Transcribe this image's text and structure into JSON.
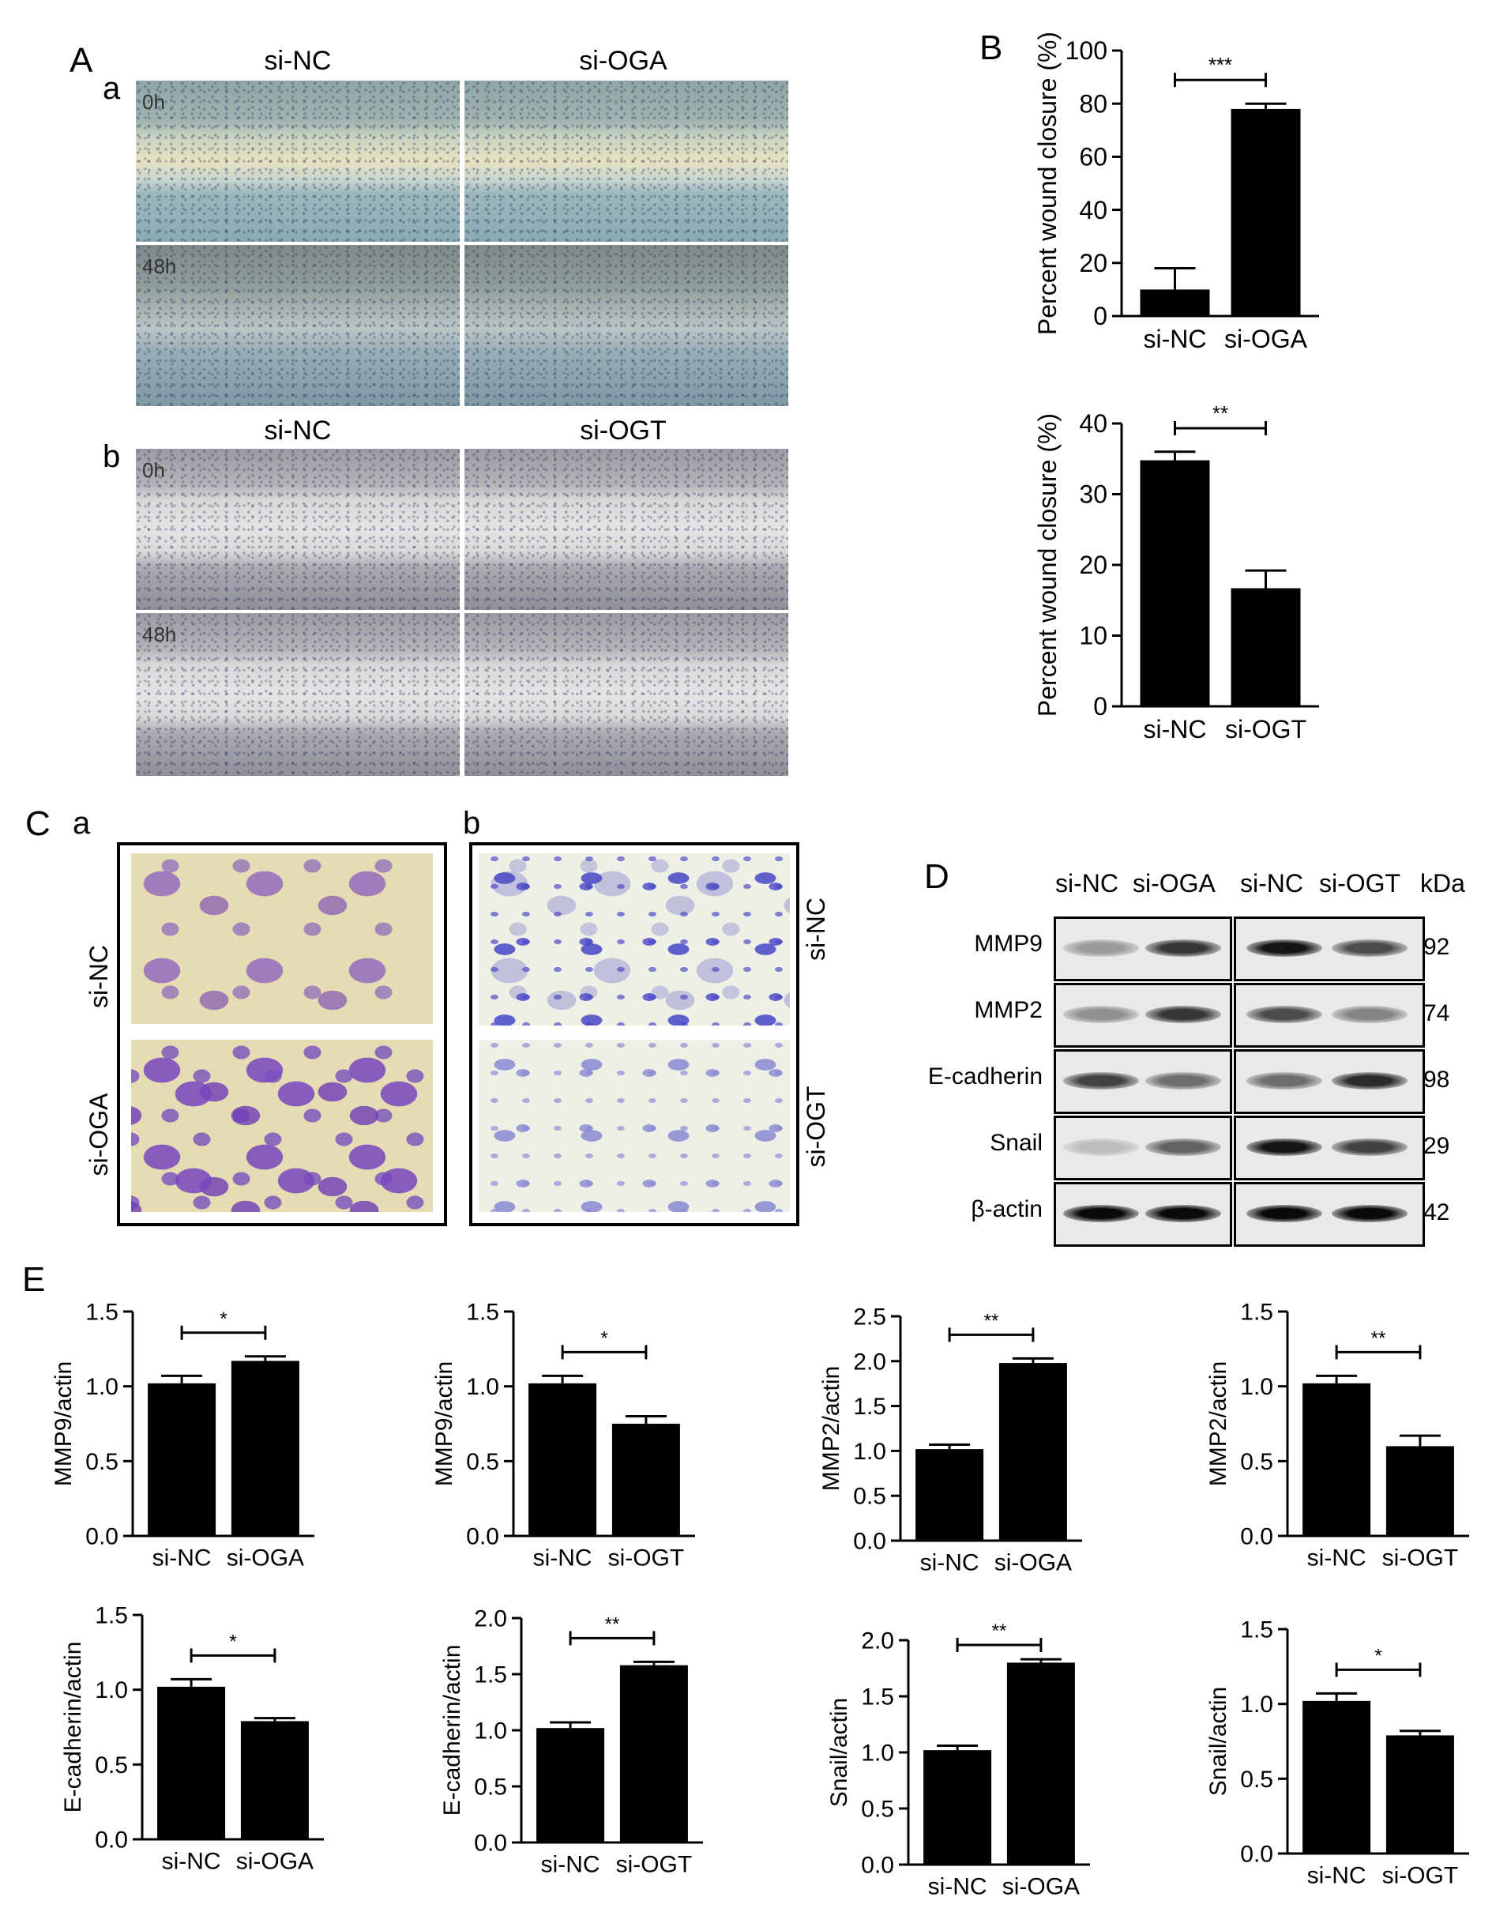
{
  "panels": {
    "A": "A",
    "B": "B",
    "C": "C",
    "D": "D",
    "E": "E"
  },
  "panel_A": {
    "a": {
      "letter": "a",
      "columns": [
        "si-NC",
        "si-OGA"
      ],
      "time_labels": [
        "0h",
        "48h"
      ]
    },
    "b": {
      "letter": "b",
      "columns": [
        "si-NC",
        "si-OGT"
      ],
      "time_labels": [
        "0h",
        "48h"
      ]
    }
  },
  "panel_C": {
    "a": {
      "letter": "a",
      "rows": [
        "si-NC",
        "si-OGA"
      ]
    },
    "b": {
      "letter": "b",
      "rows": [
        "si-NC",
        "si-OGT"
      ]
    }
  },
  "panel_D": {
    "lanes": [
      "si-NC",
      "si-OGA",
      "si-NC",
      "si-OGT"
    ],
    "kda_header": "kDa",
    "rows": [
      {
        "protein": "MMP9",
        "kda": "92"
      },
      {
        "protein": "MMP2",
        "kda": "74"
      },
      {
        "protein": "E-cadherin",
        "kda": "98"
      },
      {
        "protein": "Snail",
        "kda": "29"
      },
      {
        "protein": "β-actin",
        "kda": "42"
      }
    ]
  },
  "chart_data": [
    {
      "id": "B1",
      "type": "bar",
      "categories": [
        "si-NC",
        "si-OGA"
      ],
      "values": [
        10,
        78
      ],
      "errors": [
        8,
        2
      ],
      "ylabel": "Percent wound closure (%)",
      "ylim": [
        0,
        100
      ],
      "yticks": [
        0,
        20,
        40,
        60,
        80,
        100
      ],
      "significance": "***"
    },
    {
      "id": "B2",
      "type": "bar",
      "categories": [
        "si-NC",
        "si-OGT"
      ],
      "values": [
        34.8,
        16.7
      ],
      "errors": [
        1.2,
        2.5
      ],
      "ylabel": "Percent wound closure (%)",
      "ylim": [
        0,
        40
      ],
      "yticks": [
        0,
        10,
        20,
        30,
        40
      ],
      "significance": "**"
    },
    {
      "id": "E1",
      "type": "bar",
      "categories": [
        "si-NC",
        "si-OGA"
      ],
      "values": [
        1.02,
        1.17
      ],
      "errors": [
        0.05,
        0.03
      ],
      "ylabel": "MMP9/actin",
      "ylim": [
        0,
        1.5
      ],
      "yticks": [
        "0.0",
        "0.5",
        "1.0",
        "1.5"
      ],
      "significance": "*"
    },
    {
      "id": "E2",
      "type": "bar",
      "categories": [
        "si-NC",
        "si-OGT"
      ],
      "values": [
        1.02,
        0.75
      ],
      "errors": [
        0.05,
        0.05
      ],
      "ylabel": "MMP9/actin",
      "ylim": [
        0,
        1.5
      ],
      "yticks": [
        "0.0",
        "0.5",
        "1.0",
        "1.5"
      ],
      "significance": "*"
    },
    {
      "id": "E3",
      "type": "bar",
      "categories": [
        "si-NC",
        "si-OGA"
      ],
      "values": [
        1.02,
        1.98
      ],
      "errors": [
        0.05,
        0.05
      ],
      "ylabel": "MMP2/actin",
      "ylim": [
        0,
        2.5
      ],
      "yticks": [
        "0.0",
        "0.5",
        "1.0",
        "1.5",
        "2.0",
        "2.5"
      ],
      "significance": "**"
    },
    {
      "id": "E4",
      "type": "bar",
      "categories": [
        "si-NC",
        "si-OGT"
      ],
      "values": [
        1.02,
        0.6
      ],
      "errors": [
        0.05,
        0.07
      ],
      "ylabel": "MMP2/actin",
      "ylim": [
        0,
        1.5
      ],
      "yticks": [
        "0.0",
        "0.5",
        "1.0",
        "1.5"
      ],
      "significance": "**"
    },
    {
      "id": "E5",
      "type": "bar",
      "categories": [
        "si-NC",
        "si-OGA"
      ],
      "values": [
        1.02,
        0.79
      ],
      "errors": [
        0.05,
        0.02
      ],
      "ylabel": "E-cadherin/actin",
      "ylim": [
        0,
        1.5
      ],
      "yticks": [
        "0.0",
        "0.5",
        "1.0",
        "1.5"
      ],
      "significance": "*"
    },
    {
      "id": "E6",
      "type": "bar",
      "categories": [
        "si-NC",
        "si-OGT"
      ],
      "values": [
        1.02,
        1.58
      ],
      "errors": [
        0.05,
        0.03
      ],
      "ylabel": "E-cadherin/actin",
      "ylim": [
        0,
        2.0
      ],
      "yticks": [
        "0.0",
        "0.5",
        "1.0",
        "1.5",
        "2.0"
      ],
      "significance": "**"
    },
    {
      "id": "E7",
      "type": "bar",
      "categories": [
        "si-NC",
        "si-OGA"
      ],
      "values": [
        1.02,
        1.8
      ],
      "errors": [
        0.04,
        0.03
      ],
      "ylabel": "Snail/actin",
      "ylim": [
        0,
        2.0
      ],
      "yticks": [
        "0.0",
        "0.5",
        "1.0",
        "1.5",
        "2.0"
      ],
      "significance": "**"
    },
    {
      "id": "E8",
      "type": "bar",
      "categories": [
        "si-NC",
        "si-OGT"
      ],
      "values": [
        1.02,
        0.79
      ],
      "errors": [
        0.05,
        0.03
      ],
      "ylabel": "Snail/actin",
      "ylim": [
        0,
        1.5
      ],
      "yticks": [
        "0.0",
        "0.5",
        "1.0",
        "1.5"
      ],
      "significance": "*"
    }
  ]
}
